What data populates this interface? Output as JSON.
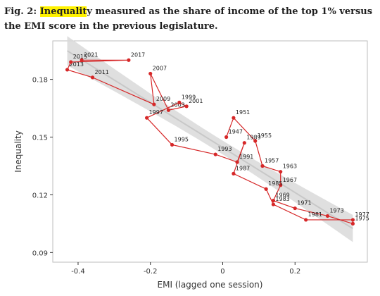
{
  "caption": {
    "prefix": "Fig. 2: ",
    "highlight": "Inequalit",
    "rest": "y measured as the share of income of the top 1% versus the EMI score in the previous legislature."
  },
  "colors": {
    "highlight": "#fff200",
    "series": "#d62728",
    "fit_line": "#c8c8c8",
    "confidence_band": "#d9d9d9",
    "panel_background": "#ffffff",
    "axis_text": "#333333"
  },
  "chart_data": {
    "type": "scatter",
    "xlabel": "EMI (lagged one session)",
    "ylabel": "Inequality",
    "xlim": [
      -0.47,
      0.4
    ],
    "ylim": [
      0.085,
      0.2
    ],
    "x_ticks": [
      -0.4,
      -0.2,
      0.0,
      0.2
    ],
    "x_tick_labels": [
      "-0.4",
      "-0.2",
      "0",
      "0.2"
    ],
    "y_ticks": [
      0.09,
      0.12,
      0.15,
      0.18
    ],
    "y_tick_labels": [
      "0.09",
      "0.12",
      "0.15",
      "0.18"
    ],
    "grid": false,
    "connected_in_time_order": true,
    "points": [
      {
        "label": "1957",
        "x": 0.11,
        "y": 0.135
      },
      {
        "label": "1963",
        "x": 0.16,
        "y": 0.132
      },
      {
        "label": "1955",
        "x": 0.09,
        "y": 0.148
      },
      {
        "label": "1951",
        "x": 0.03,
        "y": 0.16
      },
      {
        "label": "1947",
        "x": 0.01,
        "y": 0.15
      },
      {
        "label": "1989",
        "x": 0.06,
        "y": 0.147
      },
      {
        "label": "1991",
        "x": 0.04,
        "y": 0.137
      },
      {
        "label": "1987",
        "x": 0.03,
        "y": 0.131
      },
      {
        "label": "1993",
        "x": -0.02,
        "y": 0.141
      },
      {
        "label": "1995",
        "x": -0.14,
        "y": 0.146
      },
      {
        "label": "1997",
        "x": -0.21,
        "y": 0.16
      },
      {
        "label": "2003",
        "x": -0.15,
        "y": 0.164
      },
      {
        "label": "1999",
        "x": -0.12,
        "y": 0.168
      },
      {
        "label": "2001",
        "x": -0.1,
        "y": 0.166
      },
      {
        "label": "2009",
        "x": -0.19,
        "y": 0.167
      },
      {
        "label": "2007",
        "x": -0.2,
        "y": 0.183
      },
      {
        "label": "2011",
        "x": -0.36,
        "y": 0.181
      },
      {
        "label": "2013",
        "x": -0.43,
        "y": 0.185
      },
      {
        "label": "2015",
        "x": -0.42,
        "y": 0.189
      },
      {
        "label": "2021",
        "x": -0.39,
        "y": 0.19
      },
      {
        "label": "2017",
        "x": -0.26,
        "y": 0.19
      },
      {
        "label": "1967",
        "x": 0.16,
        "y": 0.125
      },
      {
        "label": "1969",
        "x": 0.14,
        "y": 0.117
      },
      {
        "label": "1971",
        "x": 0.2,
        "y": 0.113
      },
      {
        "label": "1985",
        "x": 0.12,
        "y": 0.123
      },
      {
        "label": "1983",
        "x": 0.14,
        "y": 0.115
      },
      {
        "label": "1981",
        "x": 0.23,
        "y": 0.107
      },
      {
        "label": "1973",
        "x": 0.29,
        "y": 0.109
      },
      {
        "label": "1977",
        "x": 0.36,
        "y": 0.107
      },
      {
        "label": "1975",
        "x": 0.36,
        "y": 0.105
      }
    ]
  }
}
